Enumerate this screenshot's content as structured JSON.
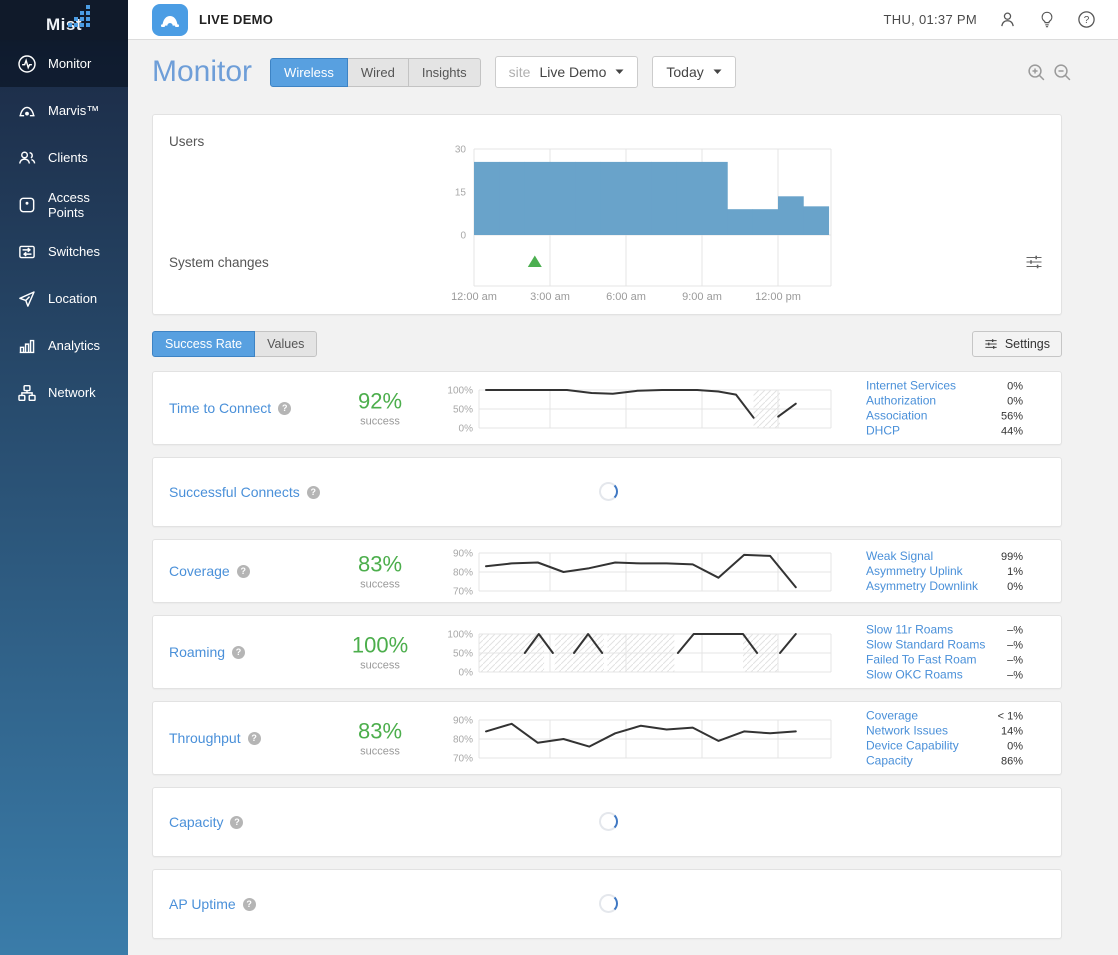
{
  "brand": {
    "logo_text": "Mist"
  },
  "sidebar": {
    "items": [
      {
        "label": "Monitor",
        "active": true
      },
      {
        "label": "Marvis™"
      },
      {
        "label": "Clients"
      },
      {
        "label": "Access Points"
      },
      {
        "label": "Switches"
      },
      {
        "label": "Location"
      },
      {
        "label": "Analytics"
      },
      {
        "label": "Network"
      }
    ]
  },
  "topbar": {
    "org_name": "LIVE DEMO",
    "datetime": "THU, 01:37 PM"
  },
  "monitor": {
    "title": "Monitor",
    "tabs": [
      "Wireless",
      "Wired",
      "Insights"
    ],
    "active_tab": "Wireless",
    "site_label": "site",
    "site_value": "Live Demo",
    "range_value": "Today"
  },
  "overview": {
    "users_label": "Users",
    "system_changes_label": "System changes",
    "chart": {
      "type": "bar",
      "ylabel": "Users",
      "y_ticks": [
        30,
        15,
        0
      ],
      "ylim": [
        0,
        30
      ],
      "x_labels": [
        "12:00 am",
        "3:00 am",
        "6:00 am",
        "9:00 am",
        "12:00 pm"
      ],
      "hours_span": "12:00 am – 2:00 pm",
      "hourly_users": [
        25.5,
        25.5,
        25.5,
        25.5,
        25.5,
        25.5,
        25.5,
        25.5,
        25.5,
        25.5,
        9,
        9,
        13.5,
        10
      ],
      "bar_color": "#69a3ca",
      "system_change_marker_hour": 2.4,
      "marker_color": "#4caf50"
    }
  },
  "view_toggle": {
    "options": [
      "Success Rate",
      "Values"
    ],
    "active": "Success Rate",
    "settings_label": "Settings"
  },
  "colors": {
    "accent_blue": "#4a90d9",
    "success_green": "#4cae4c",
    "active_tab": "#58a0e0"
  },
  "metrics": [
    {
      "id": "time_to_connect",
      "label": "Time to Connect",
      "state": "loaded",
      "value": "92%",
      "value_caption": "success",
      "axis": {
        "min": 0,
        "max": 100,
        "labels": [
          "100%",
          "50%",
          "0%"
        ]
      },
      "sparkline": {
        "segments": [
          [
            [
              0.02,
              100
            ],
            [
              0.25,
              100
            ],
            [
              0.32,
              92
            ],
            [
              0.38,
              90
            ],
            [
              0.45,
              98
            ],
            [
              0.52,
              100
            ],
            [
              0.62,
              100
            ],
            [
              0.68,
              96
            ],
            [
              0.73,
              88
            ],
            [
              0.78,
              27
            ]
          ],
          [
            [
              0.85,
              30
            ],
            [
              0.9,
              64
            ]
          ]
        ],
        "hatch": [
          [
            0.78,
            0.855
          ]
        ]
      },
      "classifiers": [
        {
          "label": "Internet Services",
          "value": "0%"
        },
        {
          "label": "Authorization",
          "value": "0%"
        },
        {
          "label": "Association",
          "value": "56%"
        },
        {
          "label": "DHCP",
          "value": "44%"
        }
      ]
    },
    {
      "id": "successful_connects",
      "label": "Successful Connects",
      "state": "loading"
    },
    {
      "id": "coverage",
      "label": "Coverage",
      "state": "loaded",
      "value": "83%",
      "value_caption": "success",
      "axis": {
        "min": 70,
        "max": 90,
        "labels": [
          "90%",
          "80%",
          "70%"
        ]
      },
      "sparkline": {
        "segments": [
          [
            [
              0.02,
              83
            ],
            [
              0.093,
              84.5
            ],
            [
              0.167,
              85
            ],
            [
              0.24,
              80
            ],
            [
              0.313,
              82
            ],
            [
              0.387,
              85
            ],
            [
              0.46,
              84.5
            ],
            [
              0.533,
              84.5
            ],
            [
              0.607,
              84
            ],
            [
              0.68,
              77
            ],
            [
              0.753,
              89
            ],
            [
              0.827,
              88.5
            ],
            [
              0.9,
              72
            ]
          ]
        ],
        "hatch": []
      },
      "classifiers": [
        {
          "label": "Weak Signal",
          "value": "99%"
        },
        {
          "label": "Asymmetry Uplink",
          "value": "1%"
        },
        {
          "label": "Asymmetry Downlink",
          "value": "0%"
        }
      ]
    },
    {
      "id": "roaming",
      "label": "Roaming",
      "state": "loaded",
      "value": "100%",
      "value_caption": "success",
      "axis": {
        "min": 0,
        "max": 100,
        "labels": [
          "100%",
          "50%",
          "0%"
        ]
      },
      "sparkline": {
        "segments": [
          [
            [
              0.13,
              50
            ],
            [
              0.17,
              100
            ],
            [
              0.21,
              50
            ]
          ],
          [
            [
              0.27,
              50
            ],
            [
              0.31,
              100
            ],
            [
              0.35,
              50
            ]
          ],
          [
            [
              0.565,
              50
            ],
            [
              0.61,
              100
            ],
            [
              0.75,
              100
            ],
            [
              0.79,
              50
            ]
          ],
          [
            [
              0.855,
              50
            ],
            [
              0.9,
              100
            ]
          ]
        ],
        "hatch": [
          [
            0.0,
            0.185
          ],
          [
            0.215,
            0.355
          ],
          [
            0.365,
            0.555
          ],
          [
            0.75,
            0.85
          ]
        ]
      },
      "classifiers": [
        {
          "label": "Slow 11r Roams",
          "value": "–%"
        },
        {
          "label": "Slow Standard Roams",
          "value": "–%"
        },
        {
          "label": "Failed To Fast Roam",
          "value": "–%"
        },
        {
          "label": "Slow OKC Roams",
          "value": "–%"
        }
      ]
    },
    {
      "id": "throughput",
      "label": "Throughput",
      "state": "loaded",
      "value": "83%",
      "value_caption": "success",
      "axis": {
        "min": 70,
        "max": 90,
        "labels": [
          "90%",
          "80%",
          "70%"
        ]
      },
      "sparkline": {
        "segments": [
          [
            [
              0.02,
              84
            ],
            [
              0.093,
              88
            ],
            [
              0.167,
              78
            ],
            [
              0.24,
              80
            ],
            [
              0.313,
              76
            ],
            [
              0.387,
              83
            ],
            [
              0.46,
              87
            ],
            [
              0.533,
              85
            ],
            [
              0.607,
              86
            ],
            [
              0.68,
              79
            ],
            [
              0.753,
              84
            ],
            [
              0.827,
              83
            ],
            [
              0.9,
              84
            ]
          ]
        ],
        "hatch": []
      },
      "classifiers": [
        {
          "label": "Coverage",
          "value": "< 1%"
        },
        {
          "label": "Network Issues",
          "value": "14%"
        },
        {
          "label": "Device Capability",
          "value": "0%"
        },
        {
          "label": "Capacity",
          "value": "86%"
        }
      ]
    },
    {
      "id": "capacity",
      "label": "Capacity",
      "state": "loading"
    },
    {
      "id": "ap_uptime",
      "label": "AP Uptime",
      "state": "loading"
    }
  ]
}
